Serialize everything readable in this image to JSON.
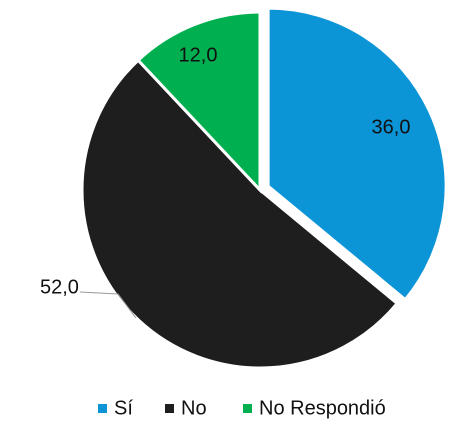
{
  "chart_data": {
    "type": "pie",
    "categories": [
      "Sí",
      "No",
      "No Respondió"
    ],
    "values": [
      36,
      52,
      12
    ],
    "value_labels": [
      "36,0",
      "52,0",
      "12,0"
    ],
    "colors": [
      "#0b94d6",
      "#1e1e1e",
      "#00b050"
    ],
    "legend": "bottom"
  }
}
